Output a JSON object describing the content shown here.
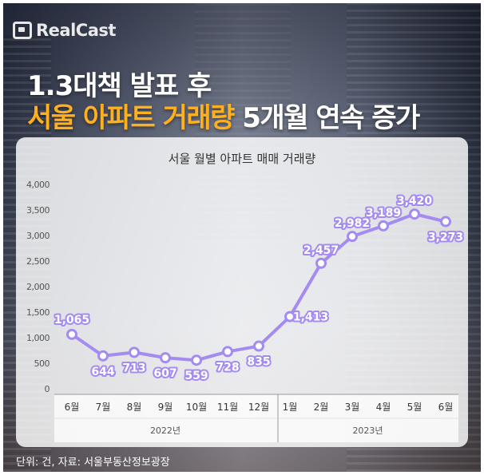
{
  "brand": {
    "logo_text": "RealCast"
  },
  "headline": {
    "line1": "1.3대책 발표 후",
    "line2_highlight": "서울 아파트 거래량",
    "line2_rest": " 5개월 연속 증가",
    "highlight_color": "#ffb01f"
  },
  "footer": {
    "source": "단위: 건, 자료: 서울부동산정보광장"
  },
  "colors": {
    "line": "#a48bf0",
    "point_fill": "#ffffff",
    "label_color": "#ffffff"
  },
  "chart_data": {
    "type": "line",
    "title": "서울 월별 아파트 매매 거래량",
    "categories": [
      "6월",
      "7월",
      "8월",
      "9월",
      "10월",
      "11월",
      "12월",
      "1월",
      "2월",
      "3월",
      "4월",
      "5월",
      "6월"
    ],
    "groups": [
      {
        "label": "2022년",
        "from": 0,
        "to": 6
      },
      {
        "label": "2023년",
        "from": 7,
        "to": 12
      }
    ],
    "values": [
      1065,
      644,
      713,
      607,
      559,
      728,
      835,
      1413,
      2457,
      2982,
      3189,
      3420,
      3273
    ],
    "value_labels": [
      "1,065",
      "644",
      "713",
      "607",
      "559",
      "728",
      "835",
      "1,413",
      "2,457",
      "2,982",
      "3,189",
      "3,420",
      "3,273"
    ],
    "yticks": [
      0,
      500,
      1000,
      1500,
      2000,
      2500,
      3000,
      3500,
      4000
    ],
    "ytick_labels": [
      "0",
      "500",
      "1,000",
      "1,500",
      "2,000",
      "2,500",
      "3,000",
      "3,500",
      "4,000"
    ],
    "ylim": [
      0,
      4000
    ],
    "grid": false
  }
}
